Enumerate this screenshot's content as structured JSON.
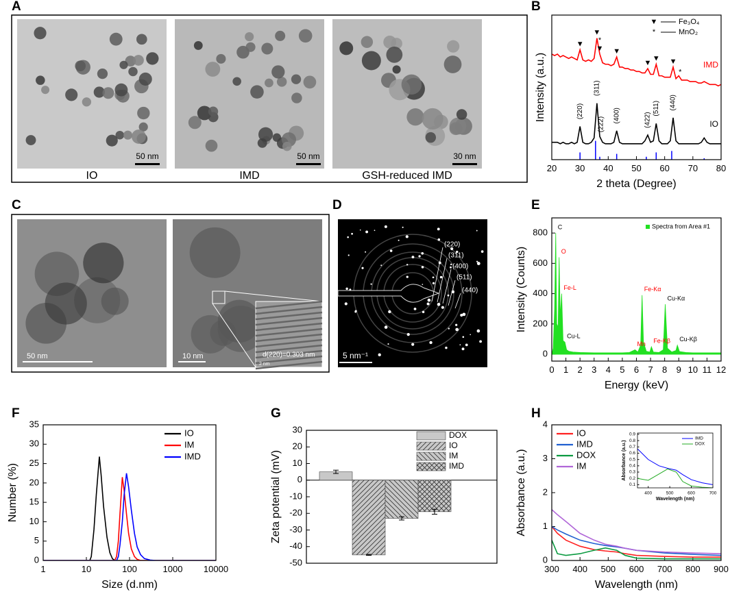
{
  "panel_labels": [
    "A",
    "B",
    "C",
    "D",
    "E",
    "F",
    "G",
    "H"
  ],
  "images": {
    "A": {
      "captions": [
        "IO",
        "IMD",
        "GSH-reduced IMD"
      ],
      "scale_bars": [
        "50 nm",
        "50 nm",
        "30 nm"
      ]
    },
    "C": {
      "scale_bars": [
        "50 nm",
        "10 nm"
      ],
      "inset": "d(220)=0.303 nm",
      "inset_scale": "2 nm"
    },
    "D": {
      "scale_bar": "5 nm⁻¹",
      "rings": [
        "(220)",
        "(311)",
        "(400)",
        "(511)",
        "(440)"
      ]
    }
  },
  "chart_data": [
    {
      "type": "line",
      "x_label": "2 theta (Degree)",
      "y_label": "Intensity (a.u.)",
      "xlim": [
        20,
        80
      ],
      "ylim": [
        0,
        100
      ],
      "xticks": [
        20,
        30,
        40,
        50,
        60,
        70,
        80
      ],
      "x": [
        20,
        21,
        22,
        23,
        24,
        25,
        26,
        27,
        28,
        29,
        30,
        31,
        32,
        33,
        34,
        35,
        36,
        37,
        38,
        39,
        40,
        41,
        42,
        43,
        44,
        45,
        46,
        47,
        48,
        49,
        50,
        51,
        52,
        53,
        54,
        55,
        56,
        57,
        58,
        59,
        60,
        61,
        62,
        63,
        64,
        65,
        66,
        67,
        68,
        69,
        70,
        71,
        72,
        73,
        74,
        75,
        76,
        77,
        78,
        79,
        80
      ],
      "series": [
        {
          "name": "IMD",
          "color": "#ff0000",
          "values": [
            73,
            72,
            73,
            71,
            72,
            71,
            70,
            71,
            70,
            69,
            76,
            69,
            68,
            69,
            68,
            70,
            84,
            73,
            67,
            66,
            66,
            65,
            66,
            71,
            64,
            64,
            63,
            63,
            62,
            62,
            61,
            61,
            60,
            60,
            63,
            59,
            59,
            66,
            58,
            58,
            57,
            57,
            57,
            64,
            56,
            58,
            55,
            55,
            55,
            54,
            54,
            54,
            53,
            53,
            54,
            53,
            52,
            52,
            52,
            51,
            52
          ]
        },
        {
          "name": "IO",
          "color": "#000000",
          "values": [
            12,
            12,
            12,
            11,
            12,
            11,
            11,
            12,
            11,
            12,
            23,
            12,
            11,
            11,
            12,
            15,
            39,
            16,
            12,
            11,
            11,
            11,
            12,
            20,
            12,
            11,
            11,
            11,
            11,
            11,
            11,
            11,
            11,
            13,
            17,
            12,
            13,
            25,
            13,
            11,
            11,
            11,
            13,
            29,
            13,
            11,
            11,
            11,
            11,
            11,
            11,
            11,
            11,
            12,
            15,
            12,
            11,
            11,
            11,
            11,
            11
          ]
        },
        {
          "color": "#0000ff",
          "mark": "stem",
          "x": [
            30,
            35.5,
            37,
            43,
            53.5,
            57,
            62.5,
            74
          ],
          "values": [
            5,
            13,
            2,
            4,
            2,
            5,
            6,
            1
          ]
        }
      ],
      "markers": [
        {
          "x": 30,
          "label": "▼"
        },
        {
          "x": 36,
          "label": "▼"
        },
        {
          "x": 37,
          "label": "▼"
        },
        {
          "x": 37,
          "label": "*"
        },
        {
          "x": 43,
          "label": "▼"
        },
        {
          "x": 54,
          "label": "▼"
        },
        {
          "x": 57,
          "label": "▼"
        },
        {
          "x": 63,
          "label": "▼"
        },
        {
          "x": 65.5,
          "label": "*"
        }
      ],
      "peak_labels": [
        {
          "x": 30,
          "label": "(220)"
        },
        {
          "x": 36,
          "label": "(311)"
        },
        {
          "x": 37.5,
          "label": "(222)"
        },
        {
          "x": 43,
          "label": "(400)"
        },
        {
          "x": 54,
          "label": "(422)"
        },
        {
          "x": 57,
          "label": "(511)"
        },
        {
          "x": 63,
          "label": "(440)"
        }
      ],
      "symbol_legend": [
        {
          "symbol": "▼",
          "label": "Fe₃O₄"
        },
        {
          "symbol": "*",
          "label": "MnO₂"
        }
      ]
    },
    {
      "type": "area",
      "x_label": "Energy (keV)",
      "y_label": "Intensity (Counts)",
      "xlim": [
        0,
        12
      ],
      "ylim": [
        -45,
        900
      ],
      "xticks": [
        0,
        1,
        2,
        3,
        4,
        5,
        6,
        7,
        8,
        9,
        10,
        11,
        12
      ],
      "yticks": [
        0,
        200,
        400,
        600,
        800
      ],
      "legend": "top-right",
      "series": [
        {
          "name": "Spectra from Area #1",
          "color": "#22e022",
          "x": [
            0,
            0.1,
            0.2,
            0.28,
            0.35,
            0.45,
            0.52,
            0.6,
            0.7,
            0.8,
            0.93,
            1.05,
            1.2,
            1.5,
            2,
            3,
            4,
            5,
            5.5,
            5.9,
            6.1,
            6.3,
            6.4,
            6.5,
            6.7,
            6.95,
            7.06,
            7.2,
            7.6,
            7.9,
            8.04,
            8.2,
            8.5,
            8.8,
            8.9,
            9.05,
            9.5,
            10,
            11,
            12
          ],
          "values": [
            0,
            40,
            300,
            800,
            200,
            180,
            640,
            250,
            400,
            90,
            80,
            30,
            20,
            15,
            12,
            10,
            10,
            10,
            12,
            30,
            15,
            60,
            390,
            80,
            20,
            15,
            50,
            15,
            12,
            30,
            330,
            40,
            15,
            25,
            60,
            18,
            12,
            10,
            10,
            10
          ]
        }
      ],
      "peak_labels": [
        {
          "x": 0.28,
          "label": "C",
          "color": "#000000"
        },
        {
          "x": 0.52,
          "label": "O",
          "color": "#ff0000"
        },
        {
          "x": 0.7,
          "label": "Fe-L",
          "color": "#ff0000"
        },
        {
          "x": 0.93,
          "label": "Cu-L",
          "color": "#000000"
        },
        {
          "x": 5.9,
          "label": "Mn",
          "color": "#ff0000"
        },
        {
          "x": 6.4,
          "label": "Fe-Kα",
          "color": "#ff0000"
        },
        {
          "x": 7.06,
          "label": "Fe-Kβ",
          "color": "#ff0000"
        },
        {
          "x": 8.04,
          "label": "Cu-Kα",
          "color": "#000000"
        },
        {
          "x": 8.9,
          "label": "Cu-Kβ",
          "color": "#000000"
        }
      ]
    },
    {
      "type": "line",
      "x_label": "Size (d.nm)",
      "y_label": "Number (%)",
      "xlog": true,
      "xlim": [
        1,
        10000
      ],
      "ylim": [
        0,
        35
      ],
      "xticks": [
        1,
        10,
        100,
        1000,
        10000
      ],
      "yticks": [
        0,
        5,
        10,
        15,
        20,
        25,
        30,
        35
      ],
      "legend": "top-right",
      "x": [
        1,
        10,
        12,
        13,
        15,
        17,
        20,
        22,
        25,
        30,
        35,
        40,
        45,
        50,
        55,
        60,
        68,
        75,
        85,
        95,
        110,
        130,
        150,
        180,
        220,
        300,
        400,
        1000,
        10000
      ],
      "series": [
        {
          "name": "IO",
          "color": "#000000",
          "values": [
            0,
            0,
            0,
            1,
            8,
            17,
            26.8,
            22,
            14,
            6,
            2,
            0.5,
            0,
            0,
            0,
            0,
            0,
            0,
            0,
            0,
            0,
            0,
            0,
            0,
            0,
            0,
            0,
            0,
            0
          ]
        },
        {
          "name": "IM",
          "color": "#ff0000",
          "values": [
            0,
            0,
            0,
            0,
            0,
            0,
            0,
            0,
            0,
            0,
            0,
            0,
            0,
            1,
            5,
            12,
            21.5,
            18,
            12,
            7,
            3,
            1,
            0.3,
            0,
            0,
            0,
            0,
            0,
            0
          ]
        },
        {
          "name": "IMD",
          "color": "#0000ff",
          "values": [
            0,
            0,
            0,
            0,
            0,
            0,
            0,
            0,
            0,
            0,
            0,
            0,
            0,
            0,
            1,
            4,
            10,
            17,
            22.5,
            19,
            13,
            7,
            3.5,
            1.5,
            0.5,
            0.1,
            0,
            0,
            0
          ]
        }
      ]
    },
    {
      "type": "bar",
      "y_label": "Zeta potential (mV)",
      "ylim": [
        -50,
        30
      ],
      "yticks": [
        -50,
        -40,
        -30,
        -20,
        -10,
        0,
        10,
        20,
        30
      ],
      "legend": "top-right",
      "color": "#c8c8c8",
      "categories": [
        "DOX",
        "IO",
        "IM",
        "IMD"
      ],
      "values": [
        5,
        -45,
        -23,
        -19
      ],
      "errors": [
        1,
        0.3,
        1,
        1.5
      ],
      "patterns": [
        "solid",
        "diagonal",
        "back-diagonal",
        "cross"
      ]
    },
    {
      "type": "line",
      "x_label": "Wavelength (nm)",
      "y_label": "Absorbance (a.u.)",
      "xlim": [
        300,
        900
      ],
      "ylim": [
        0,
        4
      ],
      "xticks": [
        300,
        400,
        500,
        600,
        700,
        800,
        900
      ],
      "yticks": [
        0,
        1,
        2,
        3,
        4
      ],
      "legend": "top-left",
      "x": [
        300,
        320,
        350,
        400,
        450,
        490,
        530,
        560,
        600,
        700,
        800,
        900
      ],
      "series": [
        {
          "name": "IO",
          "color": "#ff2020",
          "values": [
            1.0,
            0.8,
            0.6,
            0.42,
            0.32,
            0.28,
            0.25,
            0.2,
            0.15,
            0.12,
            0.1,
            0.1
          ]
        },
        {
          "name": "IMD",
          "color": "#1f5fd0",
          "values": [
            1.0,
            0.9,
            0.78,
            0.6,
            0.5,
            0.44,
            0.4,
            0.36,
            0.3,
            0.22,
            0.18,
            0.15
          ]
        },
        {
          "name": "DOX",
          "color": "#0a9a40",
          "values": [
            0.6,
            0.2,
            0.15,
            0.2,
            0.3,
            0.37,
            0.3,
            0.15,
            0.07,
            0.05,
            0.05,
            0.05
          ]
        },
        {
          "name": "IM",
          "color": "#b066d8",
          "values": [
            1.5,
            1.35,
            1.15,
            0.8,
            0.6,
            0.48,
            0.42,
            0.36,
            0.3,
            0.25,
            0.22,
            0.2
          ]
        }
      ]
    },
    {
      "type": "line",
      "x_label": "Wavelength (nm)",
      "y_label": "Absorbance (a.u.)",
      "xlim": [
        350,
        700
      ],
      "ylim": [
        0.05,
        0.92
      ],
      "xticks": [
        400,
        500,
        600,
        700
      ],
      "yticks": [
        0.1,
        0.2,
        0.3,
        0.4,
        0.5,
        0.6,
        0.7,
        0.8,
        0.9
      ],
      "legend": "top-right",
      "x": [
        350,
        400,
        450,
        490,
        530,
        560,
        600,
        650,
        700
      ],
      "series": [
        {
          "name": "IMD",
          "color": "#0000ff",
          "values": [
            0.67,
            0.5,
            0.4,
            0.36,
            0.33,
            0.26,
            0.18,
            0.13,
            0.1
          ]
        },
        {
          "name": "DOX",
          "color": "#22aa22",
          "values": [
            0.2,
            0.17,
            0.27,
            0.35,
            0.3,
            0.15,
            0.08,
            0.06,
            0.05
          ]
        }
      ]
    }
  ]
}
